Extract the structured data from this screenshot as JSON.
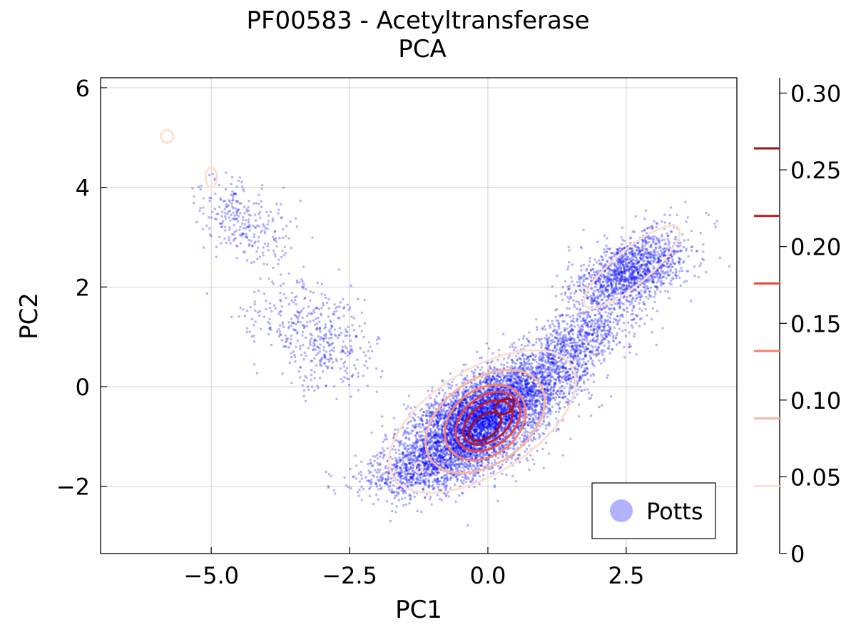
{
  "chart_data": {
    "type": "scatter",
    "title": "PF00583 - Acetyltransferase",
    "subtitle": "PCA",
    "xlabel": "PC1",
    "ylabel": "PC2",
    "xlim": [
      -7.0,
      4.5
    ],
    "ylim": [
      -3.35,
      6.2
    ],
    "grid": true,
    "legend_position": "bottom-right",
    "x_ticks": [
      -5.0,
      -2.5,
      0.0,
      2.5
    ],
    "x_tick_labels": [
      "−5.0",
      "−2.5",
      "0.0",
      "2.5"
    ],
    "y_ticks": [
      6,
      4,
      2,
      0,
      -2
    ],
    "y_tick_labels": [
      "6",
      "4",
      "2",
      "0",
      "−2"
    ],
    "series": [
      {
        "name": "Potts",
        "color": "#0000ff",
        "point_count": 9000,
        "clusters": [
          {
            "center": [
              -0.3,
              -0.85
            ],
            "spread": [
              0.55,
              0.55
            ],
            "weight": 0.4,
            "tilt": 0.55
          },
          {
            "center": [
              0.4,
              -0.2
            ],
            "spread": [
              0.55,
              0.5
            ],
            "weight": 0.2,
            "tilt": 0.5
          },
          {
            "center": [
              2.6,
              2.3
            ],
            "spread": [
              0.45,
              0.45
            ],
            "weight": 0.16,
            "tilt": 0.6
          },
          {
            "center": [
              1.6,
              0.9
            ],
            "spread": [
              0.45,
              0.45
            ],
            "weight": 0.09,
            "tilt": 0.7
          },
          {
            "center": [
              -1.2,
              -1.7
            ],
            "spread": [
              0.5,
              0.35
            ],
            "weight": 0.07,
            "tilt": 0.2
          },
          {
            "center": [
              -3.1,
              1.0
            ],
            "spread": [
              0.55,
              0.6
            ],
            "weight": 0.05,
            "tilt": -0.8
          },
          {
            "center": [
              -4.4,
              3.3
            ],
            "spread": [
              0.4,
              0.45
            ],
            "weight": 0.03,
            "tilt": -0.8
          }
        ]
      }
    ],
    "contours": {
      "colorbar_ticks": [
        0,
        0.05,
        0.1,
        0.15,
        0.2,
        0.25,
        0.3
      ],
      "colorbar_tick_labels": [
        "0",
        "0.05",
        "0.10",
        "0.15",
        "0.20",
        "0.25",
        "0.30"
      ],
      "colorbar_max": 0.31,
      "levels": [
        {
          "value": 0.044,
          "color": "#fde0d2"
        },
        {
          "value": 0.088,
          "color": "#fbb49c"
        },
        {
          "value": 0.132,
          "color": "#f88266"
        },
        {
          "value": 0.176,
          "color": "#ee4533"
        },
        {
          "value": 0.22,
          "color": "#cc1b1e"
        },
        {
          "value": 0.264,
          "color": "#a50f15"
        }
      ],
      "shapes": [
        {
          "level": 0,
          "cx": -0.1,
          "cy": -0.7,
          "rx": 1.9,
          "ry": 1.05,
          "rot": 32
        },
        {
          "level": 0,
          "cx": 2.6,
          "cy": 2.4,
          "rx": 1.1,
          "ry": 0.35,
          "rot": 40
        },
        {
          "level": 0,
          "cx": -5.8,
          "cy": 5.02,
          "rx": 0.11,
          "ry": 0.13,
          "rot": 0
        },
        {
          "level": 0,
          "cx": -5.0,
          "cy": 4.2,
          "rx": 0.1,
          "ry": 0.2,
          "rot": 0
        },
        {
          "level": 0,
          "cx": -1.25,
          "cy": -1.62,
          "rx": 0.07,
          "ry": 0.1,
          "rot": 0
        },
        {
          "level": 1,
          "cx": -0.05,
          "cy": -0.7,
          "rx": 1.2,
          "ry": 0.85,
          "rot": 35
        },
        {
          "level": 2,
          "cx": -0.05,
          "cy": -0.72,
          "rx": 0.8,
          "ry": 0.66,
          "rot": 38
        },
        {
          "level": 3,
          "cx": 0.0,
          "cy": -0.7,
          "rx": 0.65,
          "ry": 0.5,
          "rot": 38
        },
        {
          "level": 4,
          "cx": 0.0,
          "cy": -0.72,
          "rx": 0.5,
          "ry": 0.36,
          "rot": 38
        },
        {
          "level": 5,
          "cx": -0.05,
          "cy": -0.8,
          "rx": 0.33,
          "ry": 0.22,
          "rot": 38
        },
        {
          "level": 5,
          "cx": 0.3,
          "cy": -0.4,
          "rx": 0.18,
          "ry": 0.14,
          "rot": 30
        }
      ]
    }
  }
}
